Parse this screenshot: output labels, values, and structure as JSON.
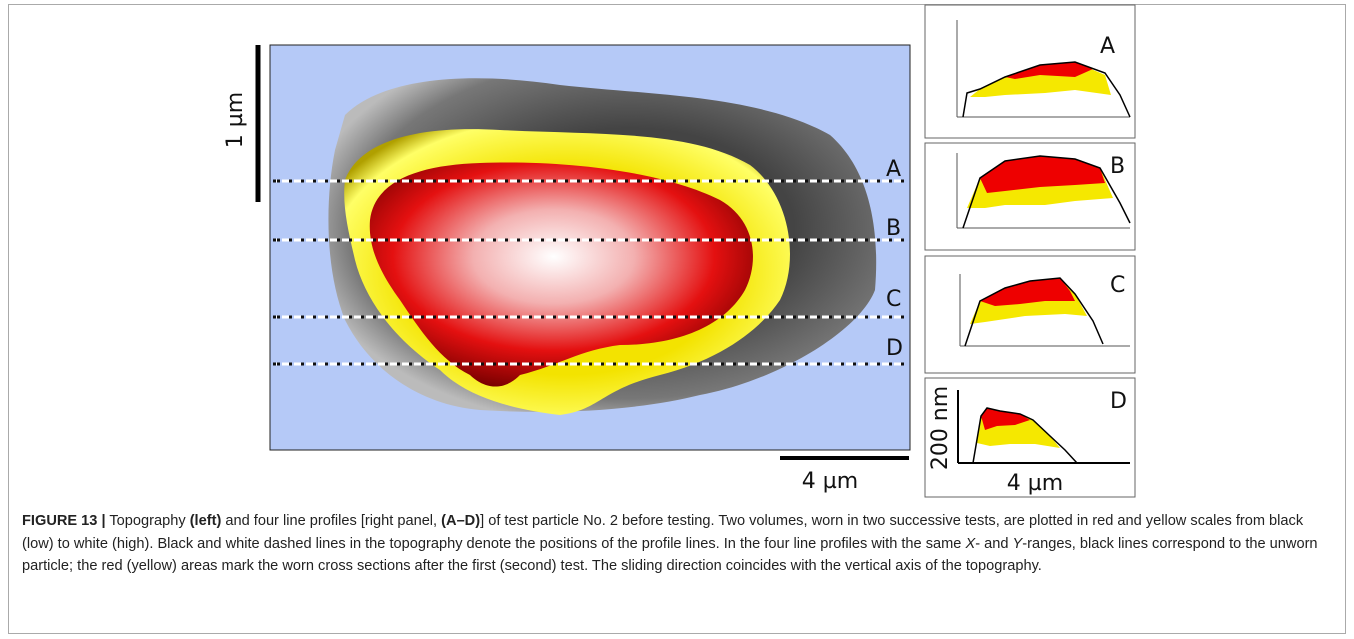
{
  "topography": {
    "scale_vertical": "1 µm",
    "scale_horizontal": "4 µm",
    "line_labels": [
      "A",
      "B",
      "C",
      "D"
    ]
  },
  "profiles": {
    "labels": [
      "A",
      "B",
      "C",
      "D"
    ],
    "y_scale": "200 nm",
    "x_scale": "4 µm"
  },
  "caption": {
    "segments": [
      "FIGURE 13 |",
      " Topography ",
      "(left)",
      " and four line profiles [right panel, ",
      "(A–D)",
      "] of test particle No. 2 before testing. Two volumes, worn in two successive tests, are plotted in red and yellow scales from black (low) to white (high). Black and white dashed lines in the topography denote the positions of the profile lines. In the four line profiles with the same ",
      "X",
      "- and ",
      "Y",
      "-ranges, black lines correspond to the unworn particle; the red (yellow) areas mark the worn cross sections after the first (second) test. The sliding direction coincides with the vertical axis of the topography."
    ]
  }
}
